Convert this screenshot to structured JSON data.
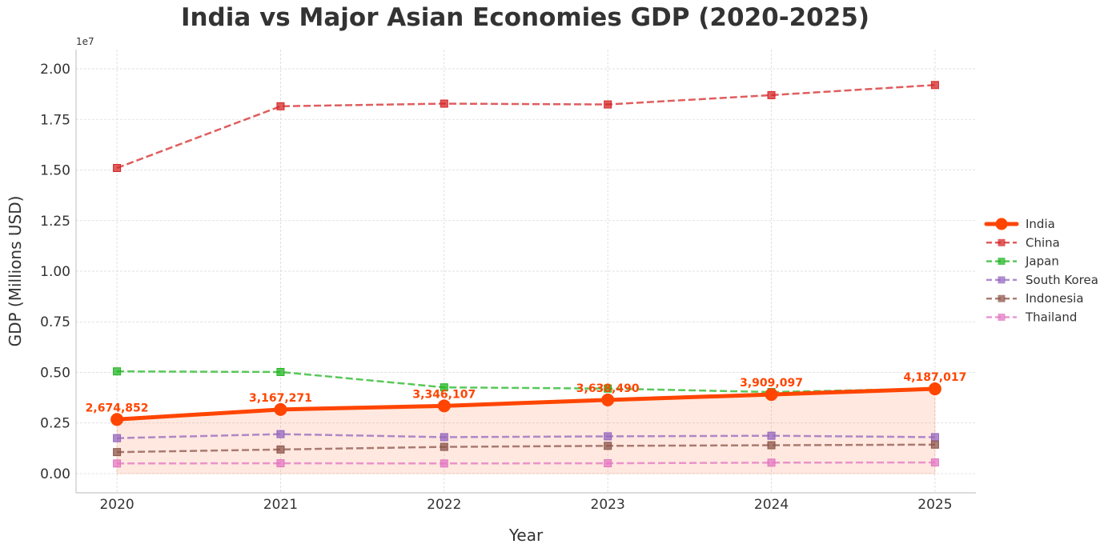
{
  "chart_data": {
    "type": "line",
    "title": "India vs Major Asian Economies GDP (2020-2025)",
    "xlabel": "Year",
    "ylabel": "GDP (Millions USD)",
    "y_offset_label": "1e7",
    "x": [
      2020,
      2021,
      2022,
      2023,
      2024,
      2025
    ],
    "x_tick_labels": [
      "2020",
      "2021",
      "2022",
      "2023",
      "2024",
      "2025"
    ],
    "y_ticks": [
      0,
      2500000,
      5000000,
      7500000,
      10000000,
      12500000,
      15000000,
      17500000,
      20000000
    ],
    "y_tick_labels": [
      "0.00",
      "0.25",
      "0.50",
      "0.75",
      "1.00",
      "1.25",
      "1.50",
      "1.75",
      "2.00"
    ],
    "xlim": [
      2019.75,
      2025.25
    ],
    "ylim": [
      -950000,
      20950000
    ],
    "grid": true,
    "legend_position": "right",
    "series": [
      {
        "name": "India",
        "color": "#FF4500",
        "marker": "circle",
        "style": "solid",
        "fill": true,
        "values": [
          2674852,
          3167271,
          3346107,
          3638490,
          3909097,
          4187017
        ],
        "labels": [
          "2,674,852",
          "3,167,271",
          "3,346,107",
          "3,638,490",
          "3,909,097",
          "4,187,017"
        ]
      },
      {
        "name": "China",
        "color": "#D62728",
        "marker": "square",
        "style": "dashed",
        "values": [
          15100000,
          18150000,
          18280000,
          18240000,
          18700000,
          19200000
        ]
      },
      {
        "name": "Japan",
        "color": "#22B522",
        "marker": "square",
        "style": "dashed",
        "values": [
          5050000,
          5020000,
          4260000,
          4200000,
          4030000,
          4200000
        ]
      },
      {
        "name": "South Korea",
        "color": "#9467BD",
        "marker": "square",
        "style": "dashed",
        "values": [
          1750000,
          1950000,
          1800000,
          1840000,
          1870000,
          1800000
        ]
      },
      {
        "name": "Indonesia",
        "color": "#8C564B",
        "marker": "square",
        "style": "dashed",
        "values": [
          1060000,
          1190000,
          1320000,
          1370000,
          1400000,
          1430000
        ]
      },
      {
        "name": "Thailand",
        "color": "#E377C2",
        "marker": "square",
        "style": "dashed",
        "values": [
          500000,
          510000,
          500000,
          510000,
          540000,
          550000
        ]
      }
    ]
  }
}
